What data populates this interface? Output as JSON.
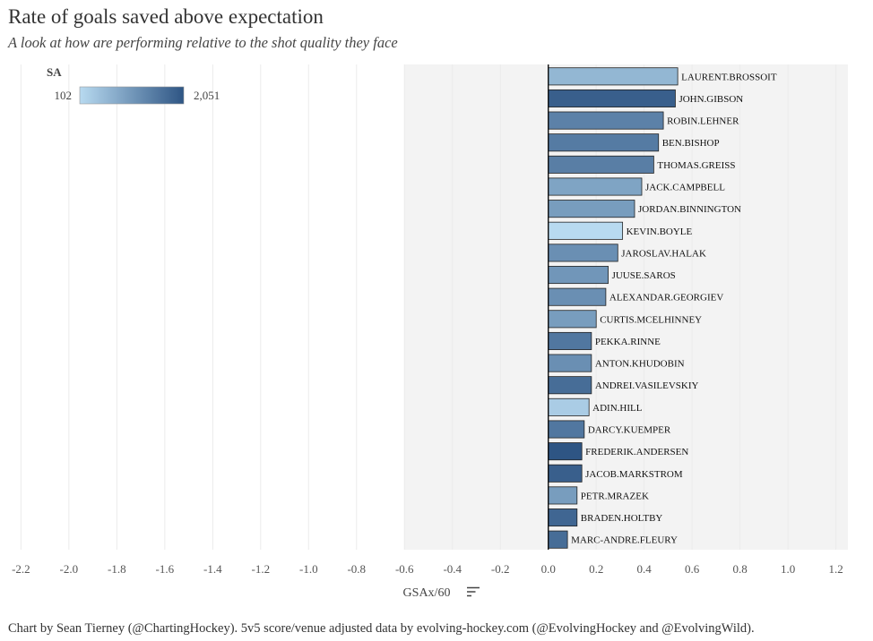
{
  "title": "Rate of goals saved above expectation",
  "subtitle": "A look at how are performing relative to the shot quality they face",
  "caption": "Chart by Sean Tierney (@ChartingHockey). 5v5 score/venue adjusted data by evolving-hockey.com (@EvolvingHockey and @EvolvingWild).",
  "colors": {
    "low": "#b8daf0",
    "high": "#2e5584",
    "bar_stroke": "#222222",
    "shaded_band": "#f3f3f3",
    "gridline": "#ebebeb",
    "zero_line": "#111111"
  },
  "icons": {
    "sort": "sort-lines-icon"
  },
  "chart_data": {
    "type": "bar",
    "orientation": "horizontal",
    "xlabel": "GSAx/60",
    "xlim": [
      -2.25,
      1.25
    ],
    "xticks": [
      -2.2,
      -2.0,
      -1.8,
      -1.6,
      -1.4,
      -1.2,
      -1.0,
      -0.8,
      -0.6,
      -0.4,
      -0.2,
      0.0,
      0.2,
      0.4,
      0.6,
      0.8,
      1.0,
      1.2
    ],
    "xtick_labels": [
      "-2.2",
      "-2.0",
      "-1.8",
      "-1.6",
      "-1.4",
      "-1.2",
      "-1.0",
      "-0.8",
      "-0.6",
      "-0.4",
      "-0.2",
      "0.0",
      "0.2",
      "0.4",
      "0.6",
      "0.8",
      "1.0",
      "1.2"
    ],
    "shaded_range": [
      -0.6,
      1.25
    ],
    "grid": true,
    "legend": {
      "title": "SA",
      "min_label": "102",
      "max_label": "2,051",
      "min": 102,
      "max": 2051,
      "placement": "top-left"
    },
    "categories": [
      "LAURENT.BROSSOIT",
      "JOHN.GIBSON",
      "ROBIN.LEHNER",
      "BEN.BISHOP",
      "THOMAS.GREISS",
      "JACK.CAMPBELL",
      "JORDAN.BINNINGTON",
      "KEVIN.BOYLE",
      "JAROSLAV.HALAK",
      "JUUSE.SAROS",
      "ALEXANDAR.GEORGIEV",
      "CURTIS.MCELHINNEY",
      "PEKKA.RINNE",
      "ANTON.KHUDOBIN",
      "ANDREI.VASILEVSKIY",
      "ADIN.HILL",
      "DARCY.KUEMPER",
      "FREDERIK.ANDERSEN",
      "JACOB.MARKSTROM",
      "PETR.MRAZEK",
      "BRADEN.HOLTBY",
      "MARC-ANDRE.FLEURY"
    ],
    "values": [
      0.54,
      0.53,
      0.48,
      0.46,
      0.44,
      0.39,
      0.36,
      0.31,
      0.29,
      0.25,
      0.24,
      0.2,
      0.18,
      0.18,
      0.18,
      0.17,
      0.15,
      0.14,
      0.14,
      0.12,
      0.12,
      0.08
    ],
    "sa": [
      620,
      1900,
      1400,
      1500,
      1450,
      900,
      1000,
      102,
      1200,
      1100,
      1200,
      1000,
      1550,
      1200,
      1700,
      300,
      1550,
      2051,
      1900,
      1000,
      1800,
      1700
    ]
  }
}
